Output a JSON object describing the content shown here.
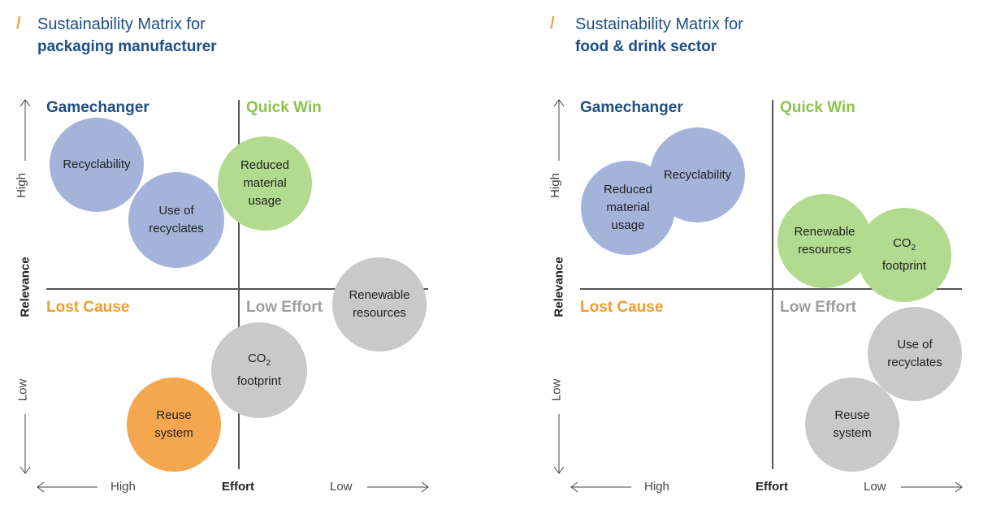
{
  "colors": {
    "title": "#1d4e86",
    "slash": "#f0a04b",
    "gamechanger": "#1d4e86",
    "quick_win": "#8bc34a",
    "lost_cause": "#f39a35",
    "low_effort": "#9e9e9e",
    "bubble_blue": "#a3b3d9",
    "bubble_green": "#b2db8f",
    "bubble_grey": "#c9c9c9",
    "bubble_orange": "#f5a750"
  },
  "left": {
    "slash": "/",
    "title_line1": "Sustainability Matrix for",
    "title_line2": "packaging manufacturer",
    "quadrants": {
      "top_left": "Gamechanger",
      "top_right": "Quick Win",
      "bottom_left": "Lost Cause",
      "bottom_right": "Low Effort"
    },
    "y_axis": {
      "label": "Relevance",
      "high": "High",
      "low": "Low"
    },
    "x_axis": {
      "label": "Effort",
      "high": "High",
      "low": "Low"
    },
    "bubbles": [
      {
        "name": "recyclability",
        "lines": [
          "Recyclability"
        ],
        "color": "blue"
      },
      {
        "name": "use-of-recyclates",
        "lines": [
          "Use of",
          "recyclates"
        ],
        "color": "blue"
      },
      {
        "name": "reduced-material-usage",
        "lines": [
          "Reduced",
          "material",
          "usage"
        ],
        "color": "green"
      },
      {
        "name": "renewable-resources",
        "lines": [
          "Renewable",
          "resources"
        ],
        "color": "grey"
      },
      {
        "name": "co2-footprint",
        "co2": "CO",
        "co2_sub": "2",
        "line2": "footprint",
        "color": "grey"
      },
      {
        "name": "reuse-system",
        "lines": [
          "Reuse",
          "system"
        ],
        "color": "orange"
      }
    ]
  },
  "right": {
    "slash": "/",
    "title_line1": "Sustainability Matrix for",
    "title_line2": "food & drink sector",
    "quadrants": {
      "top_left": "Gamechanger",
      "top_right": "Quick Win",
      "bottom_left": "Lost Cause",
      "bottom_right": "Low Effort"
    },
    "y_axis": {
      "label": "Relevance",
      "high": "High",
      "low": "Low"
    },
    "x_axis": {
      "label": "Effort",
      "high": "High",
      "low": "Low"
    },
    "bubbles": [
      {
        "name": "reduced-material-usage",
        "lines": [
          "Reduced",
          "material",
          "usage"
        ],
        "color": "blue"
      },
      {
        "name": "recyclability",
        "lines": [
          "Recyclability"
        ],
        "color": "blue"
      },
      {
        "name": "renewable-resources",
        "lines": [
          "Renewable",
          "resources"
        ],
        "color": "green"
      },
      {
        "name": "co2-footprint",
        "co2": "CO",
        "co2_sub": "2",
        "line2": "footprint",
        "color": "green"
      },
      {
        "name": "use-of-recyclates",
        "lines": [
          "Use of",
          "recyclates"
        ],
        "color": "grey"
      },
      {
        "name": "reuse-system",
        "lines": [
          "Reuse",
          "system"
        ],
        "color": "grey"
      }
    ]
  }
}
